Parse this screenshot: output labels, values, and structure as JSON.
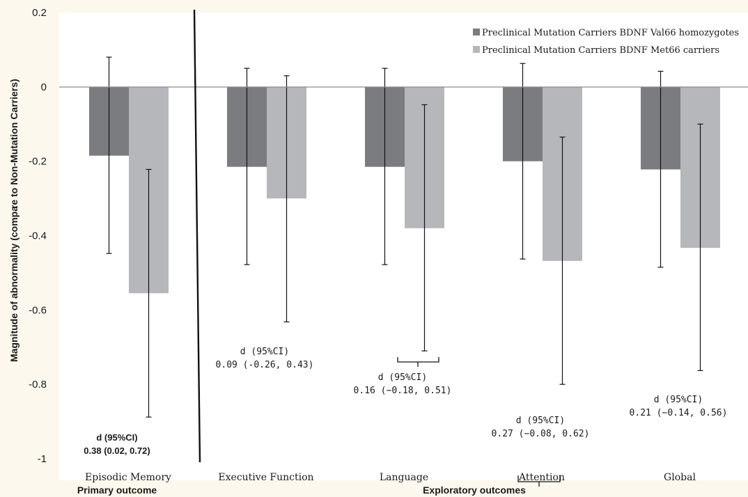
{
  "chart_data": {
    "type": "bar",
    "categories": [
      "Episodic Memory",
      "Executive Function",
      "Language",
      "Attention",
      "Global"
    ],
    "series": [
      {
        "name": "Preclinical Mutation Carriers BDNF Val66 homozygotes",
        "color": "#7b7c80",
        "values": [
          -0.185,
          -0.215,
          -0.215,
          -0.2,
          -0.222
        ],
        "ci_low": [
          -0.448,
          -0.478,
          -0.478,
          -0.463,
          -0.485
        ],
        "ci_high": [
          0.08,
          0.05,
          0.05,
          0.063,
          0.042
        ]
      },
      {
        "name": "Preclinical Mutation Carriers BDNF Met66 carriers",
        "color": "#b6b7ba",
        "values": [
          -0.555,
          -0.3,
          -0.38,
          -0.468,
          -0.433
        ],
        "ci_low": [
          -0.888,
          -0.632,
          -0.71,
          -0.8,
          -0.763
        ],
        "ci_high": [
          -0.222,
          0.03,
          -0.048,
          -0.135,
          -0.1
        ]
      }
    ],
    "ylim": [
      -1,
      0.2
    ],
    "yticks": [
      "0.2",
      "0",
      "-0.2",
      "-0.4",
      "-0.6",
      "-0.8",
      "-1"
    ],
    "ylabel_left": "Magnitude of abnormality (compa",
    "ylabel_right": "re to Non-Mutation Carriers)",
    "group_labels": [
      "Primary outcome",
      "Exploratory outcomes"
    ],
    "legend_position": "top-right",
    "annotations": [
      {
        "line1": "d (95%CI)",
        "line2": "0.38 (0.02, 0.72)",
        "bold": true
      },
      {
        "line1": "d (95%CI)",
        "line2": "0.09 (-0.26, 0.43)",
        "bold": false
      },
      {
        "line1": "d (95%CI)",
        "line2": "0.16 (−0.18, 0.51)",
        "bold": false
      },
      {
        "line1": "d (95%CI)",
        "line2": "0.27 (−0.08, 0.62)",
        "bold": false
      },
      {
        "line1": "d (95%CI)",
        "line2": "0.21 (−0.14, 0.56)",
        "bold": false
      }
    ]
  }
}
